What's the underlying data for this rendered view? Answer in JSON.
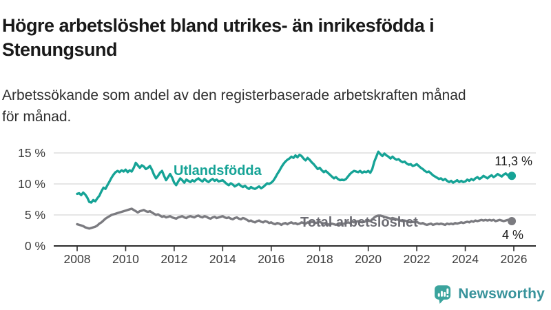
{
  "page": {
    "title": "Högre arbetslöshet bland utrikes- än inrikesfödda i\nStenungsund",
    "subtitle": "Arbetssökande som andel av den registerbaserade arbetskraften månad\nför månad."
  },
  "branding": {
    "logo_text": "Newsworthy",
    "logo_icon": "speech-bubble-with-bar-chart-and-exclamation",
    "logo_teal": "#3ba49d",
    "logo_text_color": "#38939b"
  },
  "colors": {
    "series_foreign_born": "#16a396",
    "series_total": "#7b7b80",
    "gridline": "#d8d8d8",
    "axis": "#2b2b2b",
    "axis_text": "#3c3c3c",
    "annotation_text": "#1c1c1c"
  },
  "chart_data": {
    "type": "line",
    "title": "Högre arbetslöshet bland utrikes- än inrikesfödda i Stenungsund",
    "subtitle": "Arbetssökande som andel av den registerbaserade arbetskraften månad för månad.",
    "unit": "percent",
    "frequency": "monthly",
    "x_start": "2008-01",
    "x_end": "2025-12",
    "grid": "horizontal-only",
    "legend_position": "inline-labels",
    "ylim": [
      0,
      16
    ],
    "y_axis": {
      "ticks": [
        {
          "value": 0,
          "label": "0 %"
        },
        {
          "value": 5,
          "label": "5 %"
        },
        {
          "value": 10,
          "label": "10 %"
        },
        {
          "value": 15,
          "label": "15 %"
        }
      ]
    },
    "x_axis": {
      "ticks": [
        {
          "year": 2008,
          "label": "2008"
        },
        {
          "year": 2010,
          "label": "2010"
        },
        {
          "year": 2012,
          "label": "2012"
        },
        {
          "year": 2014,
          "label": "2014"
        },
        {
          "year": 2016,
          "label": "2016"
        },
        {
          "year": 2018,
          "label": "2018"
        },
        {
          "year": 2020,
          "label": "2020"
        },
        {
          "year": 2022,
          "label": "2022"
        },
        {
          "year": 2024,
          "label": "2024"
        },
        {
          "year": 2026,
          "label": "2026"
        }
      ]
    },
    "series": [
      {
        "name": "Utlandsfödda",
        "color": "#16a396",
        "end_label": "11,3 %",
        "last_value": 11.3,
        "values": [
          8.4,
          8.5,
          8.2,
          8.6,
          8.3,
          7.8,
          7.1,
          7.0,
          7.4,
          7.2,
          7.7,
          8.1,
          8.8,
          9.4,
          9.2,
          9.8,
          10.4,
          11.0,
          11.5,
          11.9,
          12.1,
          11.9,
          12.2,
          12.0,
          12.3,
          11.9,
          12.2,
          12.0,
          12.6,
          13.4,
          13.0,
          12.6,
          13.0,
          12.8,
          12.4,
          12.6,
          12.9,
          12.3,
          11.5,
          10.9,
          11.3,
          11.8,
          12.1,
          11.3,
          10.6,
          11.1,
          11.6,
          11.0,
          10.2,
          9.8,
          10.4,
          10.9,
          10.6,
          10.2,
          10.7,
          10.5,
          10.3,
          10.6,
          10.4,
          10.7,
          10.9,
          10.6,
          10.4,
          10.8,
          10.5,
          10.3,
          10.6,
          10.8,
          10.5,
          10.7,
          10.4,
          10.5,
          10.6,
          10.3,
          10.0,
          9.8,
          10.1,
          9.9,
          9.6,
          9.8,
          10.0,
          9.7,
          9.5,
          9.7,
          9.4,
          9.2,
          9.5,
          9.3,
          9.2,
          9.4,
          9.6,
          9.3,
          9.5,
          9.8,
          10.1,
          10.0,
          10.2,
          10.5,
          11.0,
          11.6,
          12.1,
          12.7,
          13.2,
          13.6,
          13.9,
          14.1,
          14.4,
          14.2,
          14.6,
          14.3,
          14.7,
          14.5,
          14.1,
          13.8,
          14.2,
          13.9,
          13.5,
          13.2,
          12.8,
          12.4,
          12.6,
          12.2,
          11.9,
          12.1,
          11.8,
          11.5,
          11.2,
          10.9,
          11.1,
          10.8,
          10.6,
          10.7,
          10.6,
          10.8,
          11.2,
          11.6,
          11.9,
          12.1,
          12.0,
          11.9,
          12.1,
          11.8,
          12.0,
          11.9,
          12.1,
          11.8,
          12.4,
          13.6,
          14.4,
          15.2,
          14.8,
          14.5,
          14.9,
          14.6,
          14.4,
          14.1,
          14.4,
          14.1,
          13.9,
          14.0,
          13.7,
          13.5,
          13.6,
          13.3,
          13.1,
          13.2,
          12.9,
          13.0,
          13.2,
          12.9,
          12.6,
          12.4,
          12.1,
          11.9,
          12.0,
          11.7,
          11.4,
          11.2,
          11.0,
          10.8,
          10.9,
          10.6,
          10.8,
          10.5,
          10.3,
          10.5,
          10.2,
          10.4,
          10.6,
          10.3,
          10.5,
          10.3,
          10.4,
          10.7,
          10.5,
          10.8,
          10.6,
          10.9,
          11.1,
          10.8,
          11.0,
          11.3,
          11.1,
          10.9,
          11.2,
          11.4,
          11.1,
          11.3,
          11.6,
          11.4,
          11.2,
          11.5,
          11.7,
          11.4,
          11.1,
          11.3
        ]
      },
      {
        "name": "Total arbetslöshet",
        "color": "#7b7b80",
        "end_label": "4 %",
        "last_value": 4.0,
        "values": [
          3.5,
          3.4,
          3.3,
          3.2,
          3.0,
          2.9,
          2.8,
          2.9,
          3.0,
          3.1,
          3.3,
          3.6,
          3.8,
          4.1,
          4.4,
          4.6,
          4.8,
          5.0,
          5.1,
          5.2,
          5.3,
          5.4,
          5.5,
          5.6,
          5.7,
          5.8,
          5.9,
          6.0,
          5.8,
          5.6,
          5.4,
          5.6,
          5.7,
          5.8,
          5.6,
          5.5,
          5.6,
          5.4,
          5.2,
          5.0,
          5.1,
          4.9,
          4.7,
          4.8,
          4.6,
          4.7,
          4.8,
          4.6,
          4.5,
          4.4,
          4.6,
          4.7,
          4.8,
          4.6,
          4.5,
          4.7,
          4.8,
          4.7,
          4.6,
          4.8,
          4.9,
          4.7,
          4.6,
          4.8,
          4.7,
          4.5,
          4.4,
          4.6,
          4.7,
          4.5,
          4.6,
          4.7,
          4.8,
          4.6,
          4.5,
          4.6,
          4.4,
          4.3,
          4.5,
          4.6,
          4.4,
          4.3,
          4.5,
          4.4,
          4.2,
          4.0,
          4.1,
          3.9,
          3.8,
          4.0,
          4.1,
          3.9,
          3.8,
          4.0,
          3.9,
          3.7,
          3.8,
          3.6,
          3.5,
          3.7,
          3.6,
          3.4,
          3.6,
          3.7,
          3.5,
          3.7,
          3.8,
          3.6,
          3.7,
          3.5,
          3.6,
          3.8,
          3.7,
          3.6,
          3.8,
          3.7,
          3.9,
          3.8,
          3.7,
          3.8,
          3.9,
          3.7,
          3.6,
          3.7,
          3.5,
          3.4,
          3.6,
          3.5,
          3.4,
          3.5,
          3.6,
          3.5,
          3.6,
          3.7,
          3.8,
          3.7,
          3.9,
          3.8,
          3.9,
          4.0,
          3.9,
          3.8,
          3.9,
          4.0,
          4.1,
          4.0,
          4.3,
          4.6,
          4.8,
          4.9,
          4.9,
          4.8,
          4.7,
          4.6,
          4.5,
          4.4,
          4.5,
          4.4,
          4.3,
          4.2,
          4.1,
          4.0,
          4.1,
          4.0,
          3.9,
          3.8,
          3.9,
          3.8,
          3.9,
          3.7,
          3.6,
          3.7,
          3.5,
          3.4,
          3.5,
          3.6,
          3.4,
          3.5,
          3.6,
          3.5,
          3.6,
          3.5,
          3.4,
          3.6,
          3.5,
          3.6,
          3.5,
          3.7,
          3.6,
          3.7,
          3.8,
          3.7,
          3.8,
          3.9,
          3.8,
          4.0,
          3.9,
          4.1,
          4.0,
          4.1,
          4.2,
          4.1,
          4.2,
          4.1,
          4.2,
          4.1,
          4.2,
          4.0,
          4.1,
          4.2,
          4.1,
          4.0,
          4.1,
          4.2,
          4.1,
          4.0
        ]
      }
    ]
  }
}
